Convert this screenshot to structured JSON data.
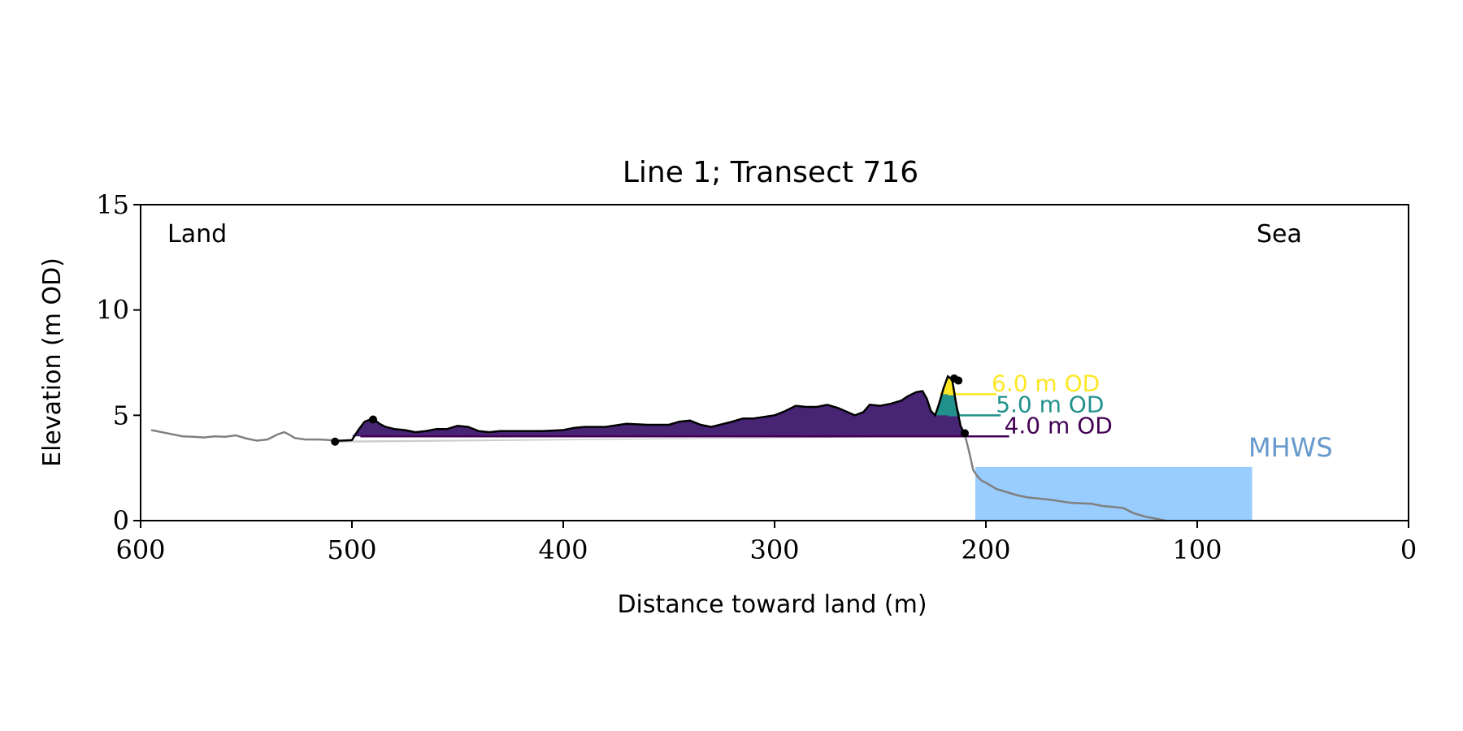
{
  "chart_data": {
    "type": "area",
    "title": "Line 1; Transect 716",
    "xlabel": "Distance toward land (m)",
    "ylabel": "Elevation (m OD)",
    "xlim": [
      600,
      0
    ],
    "ylim": [
      0,
      15
    ],
    "x_ticks": [
      600,
      500,
      400,
      300,
      200,
      100,
      0
    ],
    "y_ticks": [
      0,
      5,
      10,
      15
    ],
    "grid": false,
    "annotations": {
      "land": "Land",
      "sea": "Sea",
      "mhws": "MHWS"
    },
    "colors": {
      "profile": "#808080",
      "dune_outline": "#000000",
      "dune_fill": "#482475",
      "fill_5m": "#21918c",
      "fill_6m": "#fde725",
      "mhws_fill": "#99ccff",
      "mhws_text": "#6699cc",
      "baseline_fill": "#cccccc"
    },
    "mhws": {
      "x_range": [
        205,
        74
      ],
      "elevation": 2.55
    },
    "levels": [
      {
        "label": "6.0 m OD",
        "elevation": 6.0,
        "color": "#fde725",
        "x_end": 195
      },
      {
        "label": "5.0 m OD",
        "elevation": 5.0,
        "color": "#21918c",
        "x_end": 193
      },
      {
        "label": "4.0 m OD",
        "elevation": 4.0,
        "color": "#440154",
        "x_end": 189
      }
    ],
    "series": [
      {
        "role": "profile",
        "x": [
          595,
          590,
          585,
          580,
          575,
          570,
          565,
          560,
          555,
          550,
          545,
          540,
          535,
          532,
          530,
          527,
          522,
          515,
          510,
          508
        ],
        "y": [
          4.3,
          4.2,
          4.1,
          4.0,
          3.98,
          3.95,
          4.0,
          3.98,
          4.05,
          3.9,
          3.8,
          3.85,
          4.1,
          4.2,
          4.1,
          3.92,
          3.85,
          3.85,
          3.82,
          3.8
        ]
      },
      {
        "role": "dune",
        "x": [
          508,
          505,
          500,
          497,
          494,
          490,
          487,
          484,
          480,
          475,
          470,
          465,
          460,
          455,
          450,
          445,
          440,
          435,
          430,
          420,
          410,
          400,
          395,
          390,
          385,
          380,
          370,
          360,
          350,
          345,
          340,
          335,
          330,
          320,
          315,
          310,
          300,
          295,
          290,
          285,
          280,
          275,
          270,
          262,
          258,
          255,
          250,
          245,
          240,
          237,
          233,
          230,
          228,
          226,
          224,
          222,
          220,
          218,
          216,
          214,
          212,
          210
        ],
        "y": [
          3.8,
          3.8,
          3.82,
          4.3,
          4.7,
          4.85,
          4.6,
          4.45,
          4.35,
          4.3,
          4.2,
          4.25,
          4.35,
          4.35,
          4.5,
          4.45,
          4.25,
          4.2,
          4.25,
          4.25,
          4.25,
          4.3,
          4.4,
          4.45,
          4.45,
          4.45,
          4.6,
          4.55,
          4.55,
          4.7,
          4.75,
          4.55,
          4.45,
          4.7,
          4.85,
          4.85,
          5.0,
          5.2,
          5.45,
          5.4,
          5.4,
          5.5,
          5.35,
          5.0,
          5.15,
          5.5,
          5.45,
          5.55,
          5.7,
          5.9,
          6.1,
          6.15,
          5.8,
          5.2,
          5.0,
          5.6,
          6.3,
          6.85,
          6.7,
          5.5,
          4.5,
          4.1
        ]
      },
      {
        "role": "profile",
        "x": [
          210,
          208,
          206,
          204,
          202,
          200,
          195,
          190,
          185,
          180,
          170,
          160,
          150,
          145,
          140,
          135,
          130,
          125,
          120,
          115
        ],
        "y": [
          4.1,
          3.3,
          2.4,
          2.1,
          1.9,
          1.8,
          1.5,
          1.35,
          1.2,
          1.1,
          1.0,
          0.85,
          0.8,
          0.7,
          0.65,
          0.6,
          0.35,
          0.2,
          0.1,
          0.0
        ]
      }
    ],
    "markers": [
      {
        "x": 508,
        "y": 3.75
      },
      {
        "x": 490,
        "y": 4.8
      },
      {
        "x": 215,
        "y": 6.75
      },
      {
        "x": 213,
        "y": 6.65
      },
      {
        "x": 210,
        "y": 4.15
      }
    ]
  }
}
